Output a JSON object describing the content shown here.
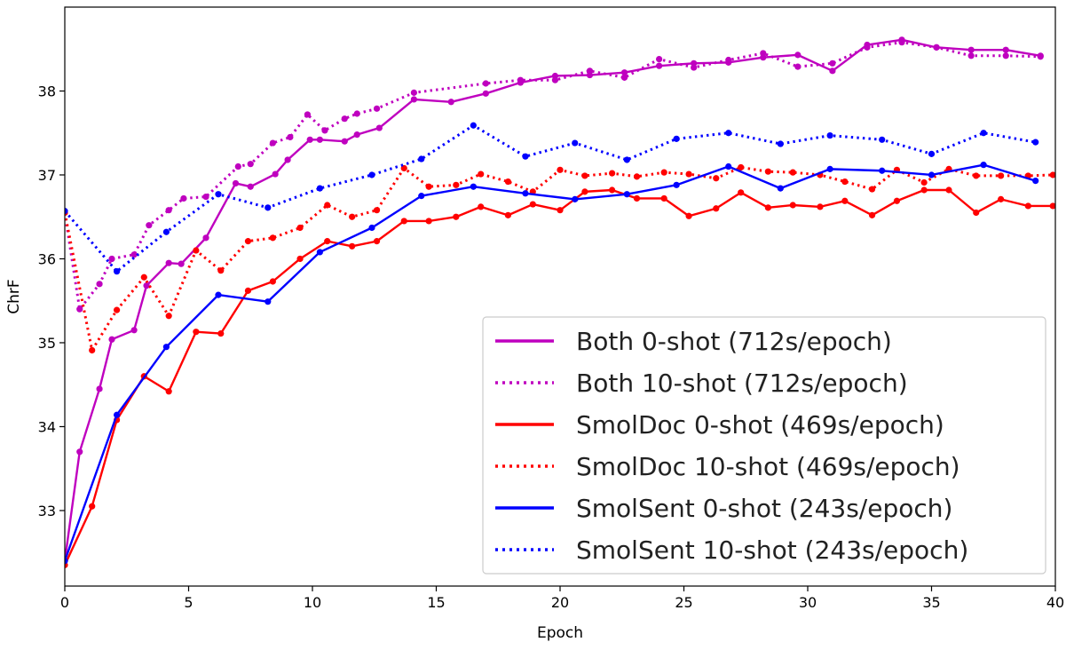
{
  "chart_data": {
    "type": "line",
    "title": "",
    "xlabel": "Epoch",
    "ylabel": "ChrF",
    "xlim": [
      0,
      40
    ],
    "ylim": [
      32.1,
      39.0
    ],
    "xticks": [
      0,
      5,
      10,
      15,
      20,
      25,
      30,
      35,
      40
    ],
    "yticks": [
      33,
      34,
      35,
      36,
      37,
      38
    ],
    "grid": false,
    "legend_position": "bottom-right",
    "series": [
      {
        "name": "Both 0-shot (712s/epoch)",
        "color": "#bf00bf",
        "style": "solid",
        "x": [
          0,
          0.6,
          1.4,
          1.9,
          2.8,
          3.3,
          4.2,
          4.7,
          5.7,
          6.9,
          7.5,
          8.5,
          9.0,
          9.9,
          10.3,
          11.3,
          11.8,
          12.7,
          14.1,
          15.6,
          17.0,
          18.4,
          19.8,
          21.2,
          22.6,
          24.0,
          25.4,
          26.8,
          28.2,
          29.6,
          31.0,
          32.4,
          33.8,
          35.2,
          36.6,
          38.0,
          39.4
        ],
        "values": [
          32.4,
          33.7,
          34.45,
          35.04,
          35.15,
          35.68,
          35.95,
          35.94,
          36.25,
          36.9,
          36.86,
          37.01,
          37.18,
          37.42,
          37.42,
          37.4,
          37.48,
          37.56,
          37.9,
          37.87,
          37.97,
          38.1,
          38.18,
          38.19,
          38.22,
          38.3,
          38.33,
          38.34,
          38.4,
          38.43,
          38.24,
          38.55,
          38.61,
          38.52,
          38.49,
          38.49,
          38.42
        ]
      },
      {
        "name": "Both 10-shot (712s/epoch)",
        "color": "#bf00bf",
        "style": "dotted",
        "x": [
          0,
          0.6,
          1.4,
          1.9,
          2.8,
          3.4,
          4.2,
          4.8,
          5.7,
          7.0,
          7.5,
          8.4,
          9.1,
          9.8,
          10.5,
          11.3,
          11.8,
          12.6,
          14.1,
          17.0,
          18.4,
          19.8,
          21.2,
          22.6,
          24.0,
          25.4,
          26.8,
          28.2,
          29.6,
          31.0,
          32.4,
          33.8,
          35.2,
          36.6,
          38.0,
          39.4
        ],
        "values": [
          36.55,
          35.4,
          35.7,
          36.0,
          36.05,
          36.4,
          36.58,
          36.72,
          36.74,
          37.1,
          37.13,
          37.38,
          37.45,
          37.72,
          37.53,
          37.67,
          37.73,
          37.79,
          37.98,
          38.09,
          38.13,
          38.13,
          38.24,
          38.16,
          38.38,
          38.28,
          38.37,
          38.45,
          38.29,
          38.33,
          38.52,
          38.58,
          38.52,
          38.42,
          38.42,
          38.41
        ]
      },
      {
        "name": "SmolDoc 0-shot (469s/epoch)",
        "color": "#ff0000",
        "style": "solid",
        "x": [
          0,
          1.1,
          2.1,
          3.2,
          4.2,
          5.3,
          6.3,
          7.4,
          8.4,
          9.5,
          10.6,
          11.6,
          12.6,
          13.7,
          14.7,
          15.8,
          16.8,
          17.9,
          18.9,
          20.0,
          21.0,
          22.1,
          23.1,
          24.2,
          25.2,
          26.3,
          27.3,
          28.4,
          29.4,
          30.5,
          31.5,
          32.6,
          33.6,
          34.7,
          35.7,
          36.8,
          37.8,
          38.9,
          39.9
        ],
        "values": [
          32.35,
          33.05,
          34.08,
          34.6,
          34.42,
          35.13,
          35.11,
          35.62,
          35.73,
          36.0,
          36.21,
          36.15,
          36.21,
          36.45,
          36.45,
          36.5,
          36.62,
          36.52,
          36.65,
          36.58,
          36.8,
          36.82,
          36.72,
          36.72,
          36.51,
          36.6,
          36.79,
          36.61,
          36.64,
          36.62,
          36.69,
          36.52,
          36.69,
          36.82,
          36.82,
          36.55,
          36.71,
          36.63,
          36.63
        ]
      },
      {
        "name": "SmolDoc 10-shot (469s/epoch)",
        "color": "#ff0000",
        "style": "dotted",
        "x": [
          0,
          1.1,
          2.1,
          3.2,
          4.2,
          5.3,
          6.3,
          7.4,
          8.4,
          9.5,
          10.6,
          11.6,
          12.6,
          13.7,
          14.7,
          15.8,
          16.8,
          17.9,
          18.9,
          20.0,
          21.0,
          22.1,
          23.1,
          24.2,
          25.2,
          26.3,
          27.3,
          28.4,
          29.4,
          30.5,
          31.5,
          32.6,
          33.6,
          34.7,
          35.7,
          36.8,
          37.8,
          38.9,
          39.9
        ],
        "values": [
          36.55,
          34.91,
          35.39,
          35.78,
          35.32,
          36.1,
          35.86,
          36.21,
          36.25,
          36.37,
          36.64,
          36.5,
          36.58,
          37.08,
          36.86,
          36.88,
          37.01,
          36.92,
          36.8,
          37.06,
          36.99,
          37.02,
          36.98,
          37.03,
          37.01,
          36.96,
          37.09,
          37.04,
          37.03,
          37.0,
          36.92,
          36.83,
          37.06,
          36.91,
          37.07,
          36.99,
          36.99,
          36.99,
          37.0
        ]
      },
      {
        "name": "SmolSent 0-shot (243s/epoch)",
        "color": "#0000ff",
        "style": "solid",
        "x": [
          0,
          2.1,
          4.1,
          6.2,
          8.2,
          10.3,
          12.4,
          14.4,
          16.5,
          18.6,
          20.6,
          22.7,
          24.7,
          26.8,
          28.9,
          30.9,
          33.0,
          35.0,
          37.1,
          39.2
        ],
        "values": [
          32.4,
          34.14,
          34.95,
          35.57,
          35.49,
          36.08,
          36.37,
          36.75,
          36.86,
          36.78,
          36.71,
          36.77,
          36.88,
          37.1,
          36.84,
          37.07,
          37.05,
          37.0,
          37.12,
          36.93
        ]
      },
      {
        "name": "SmolSent 10-shot (243s/epoch)",
        "color": "#0000ff",
        "style": "dotted",
        "x": [
          0,
          2.1,
          4.1,
          6.2,
          8.2,
          10.3,
          12.4,
          14.4,
          16.5,
          18.6,
          20.6,
          22.7,
          24.7,
          26.8,
          28.9,
          30.9,
          33.0,
          35.0,
          37.1,
          39.2
        ],
        "values": [
          36.57,
          35.85,
          36.32,
          36.77,
          36.61,
          36.84,
          37.0,
          37.19,
          37.59,
          37.22,
          37.38,
          37.18,
          37.43,
          37.5,
          37.37,
          37.47,
          37.42,
          37.25,
          37.5,
          37.39
        ]
      }
    ]
  }
}
